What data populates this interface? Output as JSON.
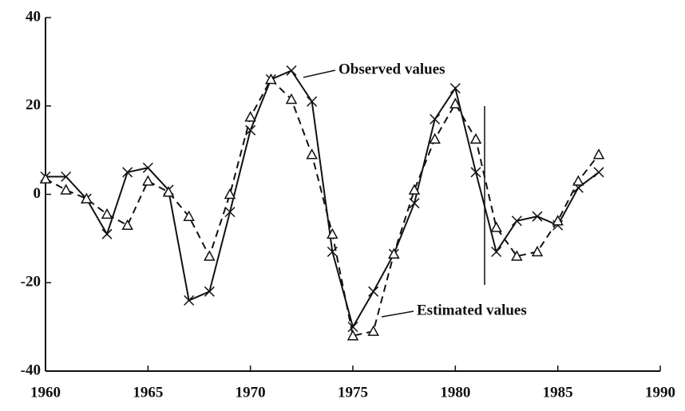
{
  "chart_data": {
    "type": "line",
    "x": [
      1960,
      1961,
      1962,
      1963,
      1964,
      1965,
      1966,
      1967,
      1968,
      1969,
      1970,
      1971,
      1972,
      1973,
      1974,
      1975,
      1976,
      1977,
      1978,
      1979,
      1980,
      1981,
      1982,
      1983,
      1984,
      1985,
      1986,
      1987
    ],
    "series": [
      {
        "name": "Observed values",
        "color": "#111111",
        "marker": "x",
        "dash": false,
        "values": [
          4,
          4,
          -1,
          -9,
          5,
          6,
          1,
          -24,
          -22,
          -4,
          14.5,
          26,
          28,
          21,
          -13,
          -30,
          -22,
          -13.5,
          -2,
          17,
          24,
          5,
          -13,
          -6,
          -5,
          -7,
          1.5,
          5
        ]
      },
      {
        "name": "Estimated values",
        "color": "#111111",
        "marker": "triangle",
        "dash": true,
        "values": [
          3.5,
          1,
          -1,
          -4.5,
          -7,
          3,
          0.5,
          -5,
          -14,
          0,
          17.5,
          26,
          21.5,
          9,
          -9,
          -32,
          -31,
          -13.5,
          1,
          12.5,
          20.5,
          12.5,
          -7.5,
          -14,
          -13,
          -6,
          3,
          9
        ]
      }
    ],
    "xlim": [
      1960,
      1990
    ],
    "xticks": [
      1960,
      1965,
      1970,
      1975,
      1980,
      1985,
      1990
    ],
    "ylim": [
      -40,
      40
    ],
    "yticks": [
      -40,
      -20,
      0,
      20,
      40
    ],
    "grid": false
  }
}
